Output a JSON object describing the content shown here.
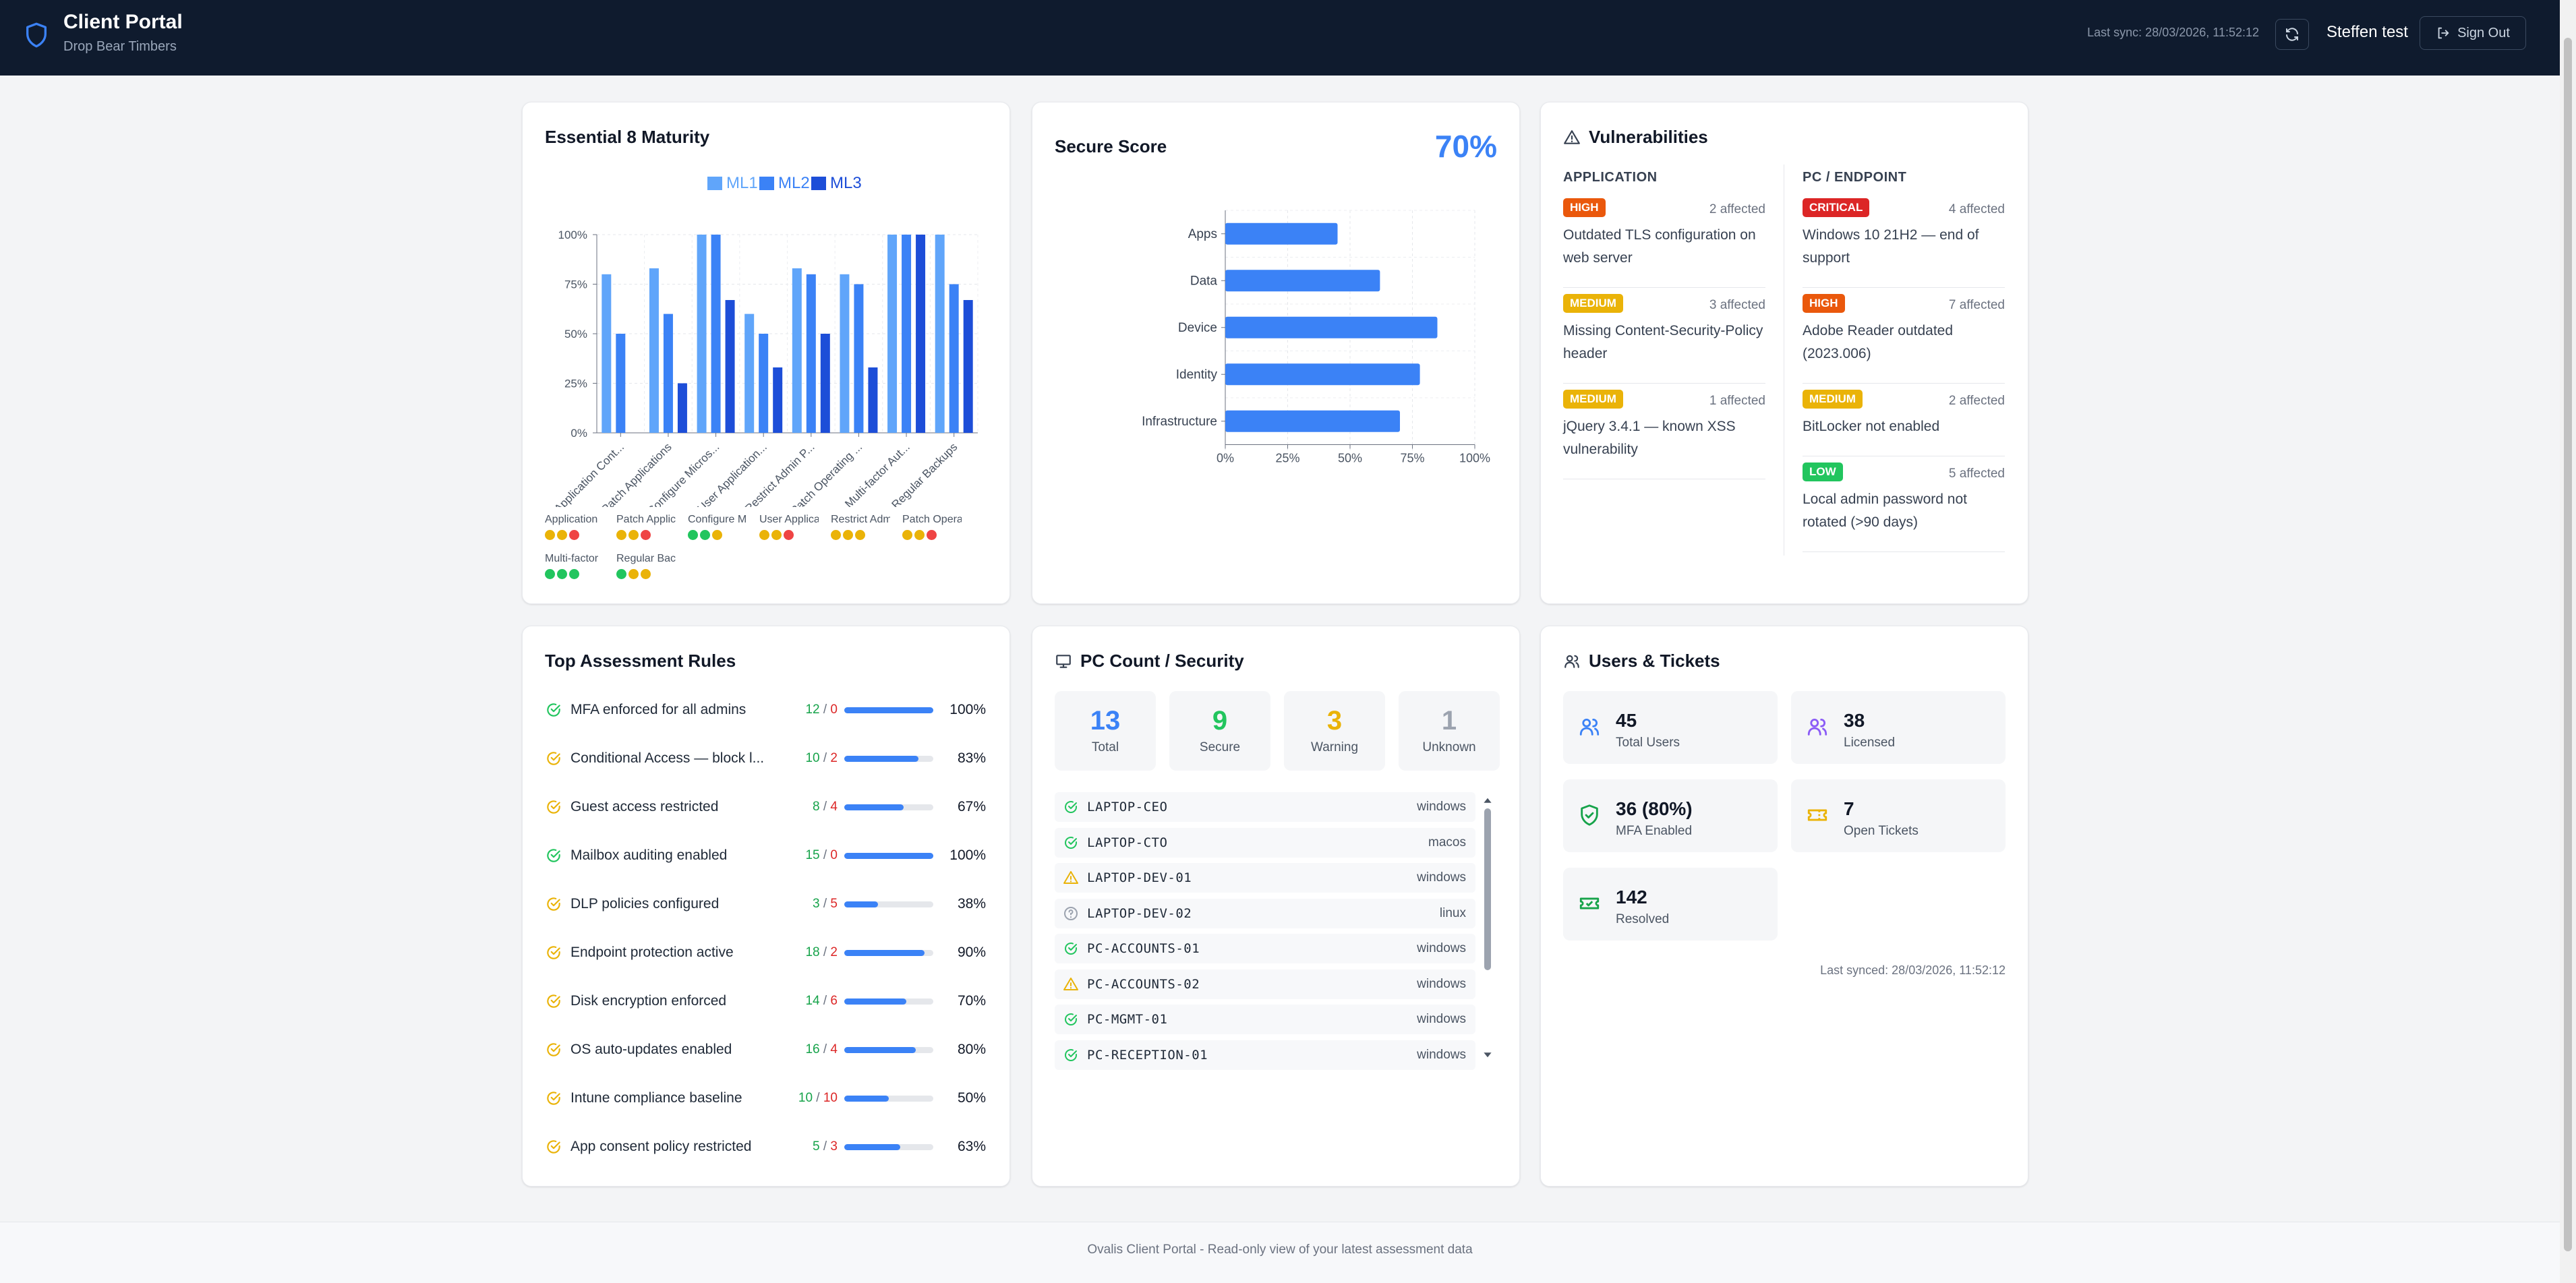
{
  "header": {
    "title": "Client Portal",
    "subtitle": "Drop Bear Timbers",
    "last_sync": "Last sync: 28/03/2026, 11:52:12",
    "user": "Steffen test",
    "sign_out": "Sign Out"
  },
  "e8": {
    "title": "Essential 8 Maturity",
    "legend": [
      "ML1",
      "ML2",
      "ML3"
    ],
    "mini": [
      {
        "name": "Application",
        "dots": [
          "#eab308",
          "#eab308",
          "#ef4444"
        ]
      },
      {
        "name": "Patch Applic",
        "dots": [
          "#eab308",
          "#eab308",
          "#ef4444"
        ]
      },
      {
        "name": "Configure Mi",
        "dots": [
          "#22c55e",
          "#22c55e",
          "#eab308"
        ]
      },
      {
        "name": "User Applica",
        "dots": [
          "#eab308",
          "#eab308",
          "#ef4444"
        ]
      },
      {
        "name": "Restrict Adm",
        "dots": [
          "#eab308",
          "#eab308",
          "#eab308"
        ]
      },
      {
        "name": "Patch Operat",
        "dots": [
          "#eab308",
          "#eab308",
          "#ef4444"
        ]
      },
      {
        "name": "Multi-factor",
        "dots": [
          "#22c55e",
          "#22c55e",
          "#22c55e"
        ]
      },
      {
        "name": "Regular Back",
        "dots": [
          "#22c55e",
          "#eab308",
          "#eab308"
        ]
      }
    ]
  },
  "secure_score": {
    "title": "Secure Score",
    "value": "70%"
  },
  "vuln": {
    "title": "Vulnerabilities",
    "app_head": "APPLICATION",
    "pc_head": "PC / ENDPOINT",
    "app": [
      {
        "sev": "HIGH",
        "color": "#ea580c",
        "affected": "2 affected",
        "text": "Outdated TLS configuration on web server"
      },
      {
        "sev": "MEDIUM",
        "color": "#eab308",
        "affected": "3 affected",
        "text": "Missing Content-Security-Policy header"
      },
      {
        "sev": "MEDIUM",
        "color": "#eab308",
        "affected": "1 affected",
        "text": "jQuery 3.4.1 — known XSS vulnerability"
      }
    ],
    "pc": [
      {
        "sev": "CRITICAL",
        "color": "#dc2626",
        "affected": "4 affected",
        "text": "Windows 10 21H2 — end of support"
      },
      {
        "sev": "HIGH",
        "color": "#ea580c",
        "affected": "7 affected",
        "text": "Adobe Reader outdated (2023.006)"
      },
      {
        "sev": "MEDIUM",
        "color": "#eab308",
        "affected": "2 affected",
        "text": "BitLocker not enabled"
      },
      {
        "sev": "LOW",
        "color": "#22c55e",
        "affected": "5 affected",
        "text": "Local admin password not rotated (>90 days)"
      }
    ]
  },
  "rules": {
    "title": "Top Assessment Rules",
    "items": [
      {
        "name": "MFA enforced for all admins",
        "pass": "12",
        "fail": "0",
        "pct": "100%",
        "frac": 1.0,
        "status": "pass"
      },
      {
        "name": "Conditional Access — block l...",
        "pass": "10",
        "fail": "2",
        "pct": "83%",
        "frac": 0.83,
        "status": "partial"
      },
      {
        "name": "Guest access restricted",
        "pass": "8",
        "fail": "4",
        "pct": "67%",
        "frac": 0.67,
        "status": "partial"
      },
      {
        "name": "Mailbox auditing enabled",
        "pass": "15",
        "fail": "0",
        "pct": "100%",
        "frac": 1.0,
        "status": "pass"
      },
      {
        "name": "DLP policies configured",
        "pass": "3",
        "fail": "5",
        "pct": "38%",
        "frac": 0.38,
        "status": "partial"
      },
      {
        "name": "Endpoint protection active",
        "pass": "18",
        "fail": "2",
        "pct": "90%",
        "frac": 0.9,
        "status": "partial"
      },
      {
        "name": "Disk encryption enforced",
        "pass": "14",
        "fail": "6",
        "pct": "70%",
        "frac": 0.7,
        "status": "partial"
      },
      {
        "name": "OS auto-updates enabled",
        "pass": "16",
        "fail": "4",
        "pct": "80%",
        "frac": 0.8,
        "status": "partial"
      },
      {
        "name": "Intune compliance baseline",
        "pass": "10",
        "fail": "10",
        "pct": "50%",
        "frac": 0.5,
        "status": "partial"
      },
      {
        "name": "App consent policy restricted",
        "pass": "5",
        "fail": "3",
        "pct": "63%",
        "frac": 0.63,
        "status": "partial"
      }
    ]
  },
  "pc": {
    "title": "PC Count / Security",
    "stats": [
      {
        "num": "13",
        "label": "Total",
        "color": "#3b82f6"
      },
      {
        "num": "9",
        "label": "Secure",
        "color": "#22c55e"
      },
      {
        "num": "3",
        "label": "Warning",
        "color": "#eab308"
      },
      {
        "num": "1",
        "label": "Unknown",
        "color": "#9ca3af"
      }
    ],
    "devices": [
      {
        "name": "LAPTOP-CEO",
        "os": "windows",
        "status": "secure"
      },
      {
        "name": "LAPTOP-CTO",
        "os": "macos",
        "status": "secure"
      },
      {
        "name": "LAPTOP-DEV-01",
        "os": "windows",
        "status": "warning"
      },
      {
        "name": "LAPTOP-DEV-02",
        "os": "linux",
        "status": "unknown"
      },
      {
        "name": "PC-ACCOUNTS-01",
        "os": "windows",
        "status": "secure"
      },
      {
        "name": "PC-ACCOUNTS-02",
        "os": "windows",
        "status": "warning"
      },
      {
        "name": "PC-MGMT-01",
        "os": "windows",
        "status": "secure"
      },
      {
        "name": "PC-RECEPTION-01",
        "os": "windows",
        "status": "secure"
      }
    ]
  },
  "users": {
    "title": "Users & Tickets",
    "tiles": [
      {
        "num": "45",
        "label": "Total Users",
        "icon": "users-icon",
        "color": "#3b82f6"
      },
      {
        "num": "38",
        "label": "Licensed",
        "icon": "licensed-users-icon",
        "color": "#8b5cf6"
      },
      {
        "num": "36 (80%)",
        "label": "MFA Enabled",
        "icon": "shield-check-icon",
        "color": "#16a34a"
      },
      {
        "num": "7",
        "label": "Open Tickets",
        "icon": "ticket-icon",
        "color": "#eab308"
      },
      {
        "num": "142",
        "label": "Resolved",
        "icon": "resolved-ticket-icon",
        "color": "#16a34a"
      }
    ],
    "last_synced": "Last synced: 28/03/2026, 11:52:12"
  },
  "footer": "Ovalis Client Portal - Read-only view of your latest assessment data",
  "chart_data": [
    {
      "type": "bar",
      "title": "Essential 8 Maturity",
      "categories": [
        "Application Cont...",
        "Patch Applications",
        "Configure Micros...",
        "User Application...",
        "Restrict Admin P...",
        "Patch Operating ...",
        "Multi-factor Aut...",
        "Regular Backups"
      ],
      "series": [
        {
          "name": "ML1",
          "values": [
            80,
            83,
            100,
            60,
            83,
            80,
            100,
            100
          ]
        },
        {
          "name": "ML2",
          "values": [
            50,
            60,
            100,
            50,
            80,
            75,
            100,
            75
          ]
        },
        {
          "name": "ML3",
          "values": [
            0,
            25,
            67,
            33,
            50,
            33,
            100,
            67
          ]
        }
      ],
      "ylim": [
        0,
        100
      ],
      "yticks": [
        "0%",
        "25%",
        "50%",
        "75%",
        "100%"
      ],
      "colors": [
        "#60a5fa",
        "#3b82f6",
        "#1d4ed8"
      ],
      "legend": "top",
      "grid": true
    },
    {
      "type": "bar",
      "orientation": "horizontal",
      "title": "Secure Score",
      "categories": [
        "Apps",
        "Data",
        "Device",
        "Identity",
        "Infrastructure"
      ],
      "values": [
        45,
        62,
        85,
        78,
        70
      ],
      "xlim": [
        0,
        100
      ],
      "xticks": [
        "0%",
        "25%",
        "50%",
        "75%",
        "100%"
      ],
      "color": "#3b82f6",
      "grid": true
    }
  ]
}
